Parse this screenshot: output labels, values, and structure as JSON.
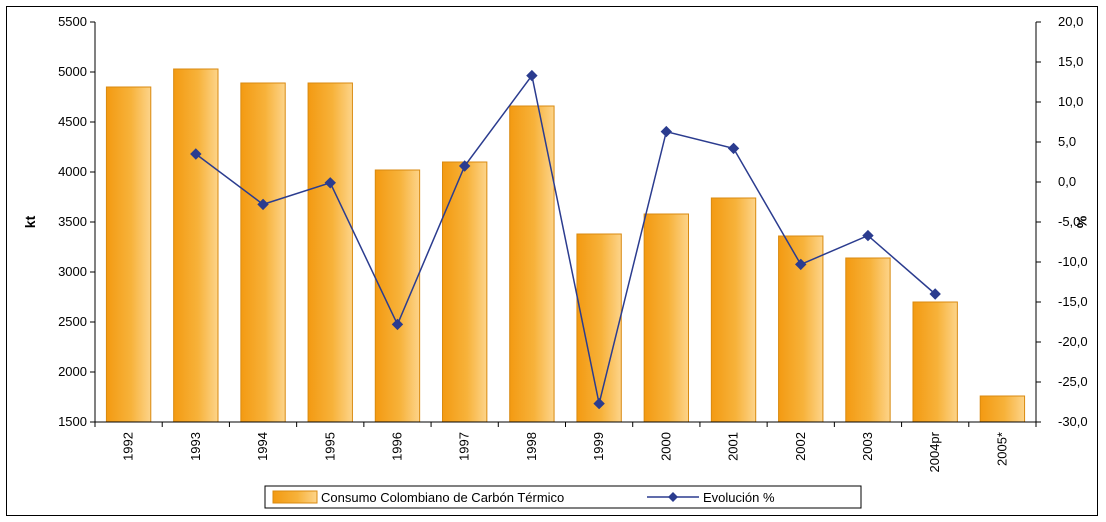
{
  "chart_data": {
    "type": "bar+line",
    "categories": [
      "1992",
      "1993",
      "1994",
      "1995",
      "1996",
      "1997",
      "1998",
      "1999",
      "2000",
      "2001",
      "2002",
      "2003",
      "2004pr",
      "2005*"
    ],
    "series": [
      {
        "name": "Consumo Colombiano de Carbón Térmico",
        "type": "bar",
        "axis": "left",
        "color": "#F5A623",
        "values": [
          4850,
          5030,
          4890,
          4890,
          4020,
          4100,
          4660,
          3380,
          3580,
          3740,
          3360,
          3140,
          2700,
          1760
        ]
      },
      {
        "name": "Evolución %",
        "type": "line",
        "axis": "right",
        "color": "#2B3C8F",
        "values": [
          null,
          3.5,
          -2.8,
          -0.1,
          -17.8,
          2.0,
          13.3,
          -27.7,
          6.3,
          4.2,
          -10.3,
          -6.7,
          -14.0,
          null
        ]
      }
    ],
    "ylabel": "kt",
    "ylim": [
      1500,
      5500
    ],
    "yticks": [
      "5500",
      "5000",
      "4500",
      "4000",
      "3500",
      "3000",
      "2500",
      "2000",
      "1500"
    ],
    "y2label": "%",
    "y2lim": [
      -30,
      20
    ],
    "y2ticks": [
      "20,0",
      "15,0",
      "10,0",
      "5,0",
      "0,0",
      "-5,0",
      "-10,0",
      "-15,0",
      "-20,0",
      "-25,0",
      "-30,0"
    ],
    "legend_position": "bottom",
    "grid": false
  }
}
